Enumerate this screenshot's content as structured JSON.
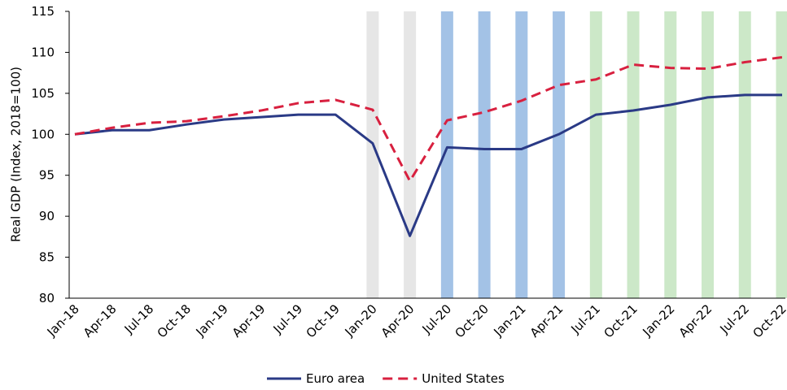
{
  "chart_data": {
    "type": "line",
    "y_label": "Real GDP (Index, 2018=100)",
    "categories": [
      "Jan-18",
      "Apr-18",
      "Jul-18",
      "Oct-18",
      "Jan-19",
      "Apr-19",
      "Jul-19",
      "Oct-19",
      "Jan-20",
      "Apr-20",
      "Jul-20",
      "Oct-20",
      "Jan-21",
      "Apr-21",
      "Jul-21",
      "Oct-21",
      "Jan-22",
      "Apr-22",
      "Jul-22",
      "Oct-22"
    ],
    "series": [
      {
        "name": "Euro area",
        "color": "#2a3a86",
        "dash": "solid",
        "values": [
          100,
          100.5,
          100.5,
          101.2,
          101.8,
          102.1,
          102.4,
          102.4,
          98.9,
          87.6,
          98.4,
          98.2,
          98.2,
          100.0,
          102.4,
          102.9,
          103.6,
          104.5,
          104.8,
          104.8
        ]
      },
      {
        "name": "United States",
        "color": "#d8203f",
        "dash": "dashed",
        "values": [
          100,
          100.8,
          101.4,
          101.6,
          102.2,
          102.9,
          103.8,
          104.2,
          103.0,
          94.3,
          101.7,
          102.7,
          104.1,
          106.0,
          106.7,
          108.5,
          108.1,
          108.0,
          108.8,
          109.4
        ]
      }
    ],
    "shading": [
      null,
      null,
      null,
      null,
      null,
      null,
      null,
      null,
      "#e6e6e6",
      "#e6e6e6",
      "#a3c2e6",
      "#a3c2e6",
      "#a3c2e6",
      "#a3c2e6",
      "#cce8c8",
      "#cce8c8",
      "#cce8c8",
      "#cce8c8",
      "#cce8c8",
      "#cce8c8"
    ],
    "ylim": [
      80,
      115
    ],
    "yticks": [
      80,
      85,
      90,
      95,
      100,
      105,
      110,
      115
    ],
    "legend": "bottom"
  }
}
